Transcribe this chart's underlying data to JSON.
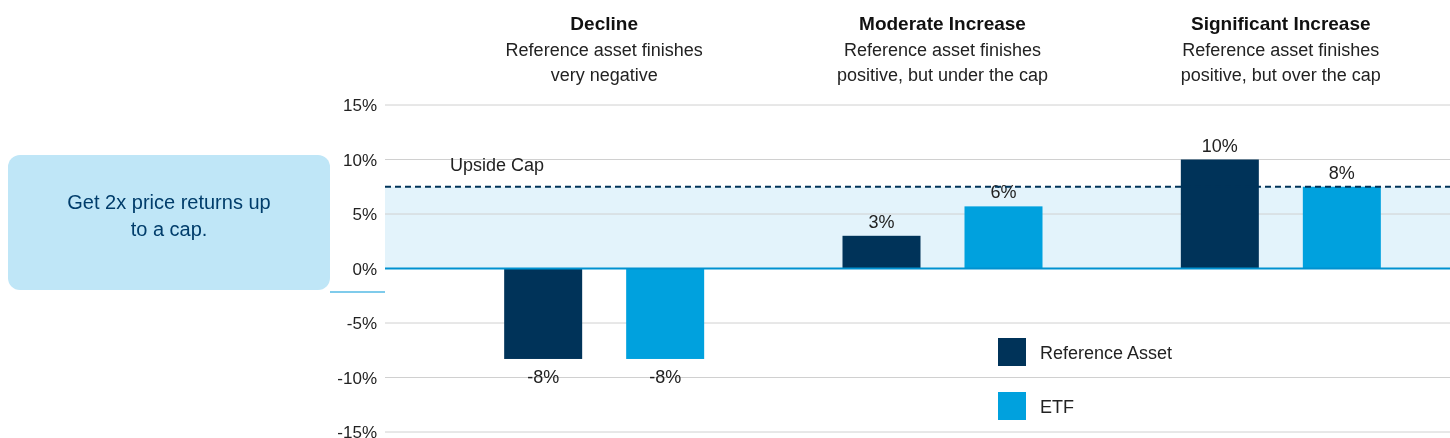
{
  "chart_data": {
    "type": "bar",
    "categories": [
      "Decline",
      "Moderate Increase",
      "Significant Increase"
    ],
    "series": [
      {
        "name": "Reference Asset",
        "color": "#003359",
        "values": [
          -8.3,
          3,
          10
        ],
        "value_labels": [
          "-8%",
          "3%",
          "10%"
        ]
      },
      {
        "name": "ETF",
        "color": "#00a1de",
        "values": [
          -8.3,
          5.7,
          7.5
        ],
        "value_labels": [
          "-8%",
          "6%",
          "8%"
        ]
      }
    ],
    "ylim": [
      -15,
      15
    ],
    "yticks": [
      {
        "value": -15,
        "label": "-15%"
      },
      {
        "value": -10,
        "label": "-10%"
      },
      {
        "value": -5,
        "label": "-5%"
      },
      {
        "value": 0,
        "label": "0%"
      },
      {
        "value": 5,
        "label": "5%"
      },
      {
        "value": 10,
        "label": "10%"
      },
      {
        "value": 15,
        "label": "15%"
      }
    ],
    "grid": "y",
    "legend": "bottom right",
    "ref_lines": [
      {
        "axis": "y",
        "value": 7.5,
        "label": "Upside Cap",
        "color": "#003359",
        "line_style": "dashed"
      },
      {
        "axis": "y",
        "value": 0,
        "color": "#0091d0",
        "line_style": "solid"
      }
    ],
    "bands": [
      {
        "axis": "y",
        "from": 0,
        "to": 7.5,
        "color": "#e3f3fb"
      }
    ],
    "annotations": [
      "Reference asset finishes very negative",
      "Reference asset finishes positive, but under the cap",
      "Reference asset finishes positive, but over the cap",
      "Get 2x price returns up to a cap."
    ]
  }
}
